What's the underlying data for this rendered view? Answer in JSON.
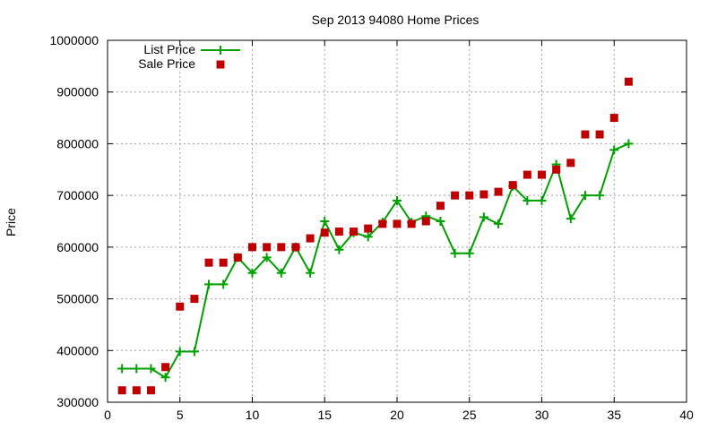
{
  "chart_data": {
    "type": "line",
    "title": "Sep 2013 94080 Home Prices",
    "xlabel": "",
    "ylabel": "Price",
    "xlim": [
      0,
      40
    ],
    "ylim": [
      300000,
      1000000
    ],
    "x_ticks": [
      0,
      5,
      10,
      15,
      20,
      25,
      30,
      35,
      40
    ],
    "y_ticks": [
      300000,
      400000,
      500000,
      600000,
      700000,
      800000,
      900000,
      1000000
    ],
    "grid": true,
    "legend_position": "top-left",
    "series": [
      {
        "name": "List Price",
        "style": "line-plus",
        "color": "#00a000",
        "x": [
          1,
          2,
          3,
          4,
          5,
          6,
          7,
          8,
          9,
          10,
          11,
          12,
          13,
          14,
          15,
          16,
          17,
          18,
          19,
          20,
          21,
          22,
          23,
          24,
          25,
          26,
          27,
          28,
          29,
          30,
          31,
          32,
          33,
          34,
          35,
          36
        ],
        "values": [
          365000,
          365000,
          365000,
          348000,
          398000,
          398000,
          528000,
          528000,
          580000,
          550000,
          580000,
          550000,
          600000,
          550000,
          650000,
          595000,
          628000,
          620000,
          648000,
          690000,
          648000,
          660000,
          650000,
          588000,
          588000,
          658000,
          645000,
          718000,
          690000,
          690000,
          760000,
          655000,
          700000,
          700000,
          788000,
          800000
        ]
      },
      {
        "name": "Sale Price",
        "style": "square",
        "color": "#c00000",
        "x": [
          1,
          2,
          3,
          4,
          5,
          6,
          7,
          8,
          9,
          10,
          11,
          12,
          13,
          14,
          15,
          16,
          17,
          18,
          19,
          20,
          21,
          22,
          23,
          24,
          25,
          26,
          27,
          28,
          29,
          30,
          31,
          32,
          33,
          34,
          35,
          36
        ],
        "values": [
          323000,
          323000,
          323000,
          368000,
          485000,
          500000,
          570000,
          570000,
          580000,
          600000,
          600000,
          600000,
          600000,
          617000,
          628000,
          630000,
          630000,
          636000,
          645000,
          645000,
          645000,
          650000,
          680000,
          700000,
          700000,
          702000,
          707000,
          720000,
          740000,
          740000,
          750000,
          763000,
          818000,
          818000,
          850000,
          920000
        ]
      }
    ]
  }
}
